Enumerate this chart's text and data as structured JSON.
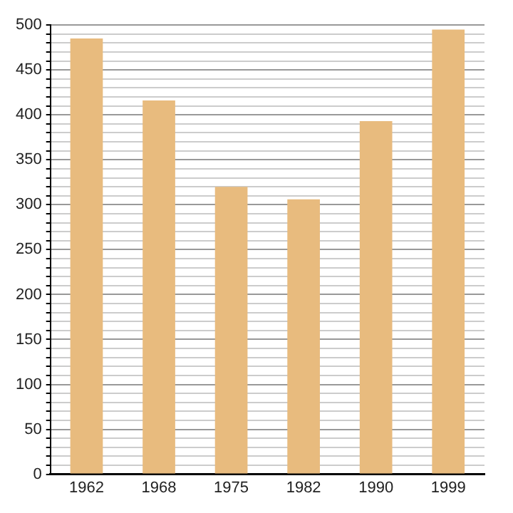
{
  "chart_data": {
    "type": "bar",
    "categories": [
      "1962",
      "1968",
      "1975",
      "1982",
      "1990",
      "1999"
    ],
    "values": [
      485,
      416,
      320,
      306,
      393,
      495
    ],
    "color": "#e8bb7e",
    "ylim": [
      0,
      500
    ],
    "yticks": [
      0,
      {
        "value": 10,
        "label": null
      },
      {
        "value": 20,
        "label": null
      },
      {
        "value": 30,
        "label": null
      },
      {
        "value": 40,
        "label": null
      },
      50,
      {
        "value": 60,
        "label": null
      },
      {
        "value": 70,
        "label": null
      },
      {
        "value": 80,
        "label": null
      },
      {
        "value": 90,
        "label": null
      },
      100,
      {
        "value": 110,
        "label": null
      },
      {
        "value": 120,
        "label": null
      },
      {
        "value": 130,
        "label": null
      },
      {
        "value": 140,
        "label": null
      },
      150,
      {
        "value": 160,
        "label": null
      },
      {
        "value": 170,
        "label": null
      },
      {
        "value": 180,
        "label": null
      },
      {
        "value": 190,
        "label": null
      },
      200,
      {
        "value": 210,
        "label": null
      },
      {
        "value": 220,
        "label": null
      },
      {
        "value": 230,
        "label": null
      },
      {
        "value": 240,
        "label": null
      },
      250,
      {
        "value": 260,
        "label": null
      },
      {
        "value": 270,
        "label": null
      },
      {
        "value": 280,
        "label": null
      },
      {
        "value": 290,
        "label": null
      },
      300,
      {
        "value": 310,
        "label": null
      },
      {
        "value": 320,
        "label": null
      },
      {
        "value": 330,
        "label": null
      },
      {
        "value": 340,
        "label": null
      },
      350,
      {
        "value": 360,
        "label": null
      },
      {
        "value": 370,
        "label": null
      },
      {
        "value": 380,
        "label": null
      },
      {
        "value": 390,
        "label": null
      },
      400,
      {
        "value": 410,
        "label": null
      },
      {
        "value": 420,
        "label": null
      },
      {
        "value": 430,
        "label": null
      },
      {
        "value": 440,
        "label": null
      },
      450,
      {
        "value": 460,
        "label": null
      },
      {
        "value": 470,
        "label": null
      },
      {
        "value": 480,
        "label": null
      },
      {
        "value": 490,
        "label": null
      },
      500
    ],
    "grid": "y"
  }
}
